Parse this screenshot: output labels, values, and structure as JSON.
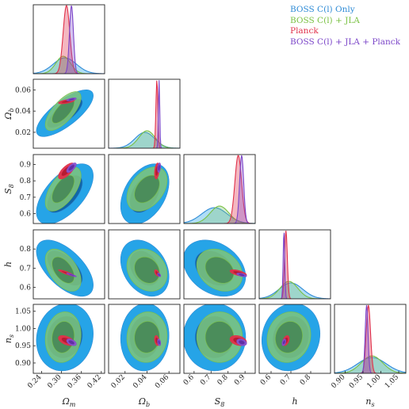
{
  "chart_data": {
    "type": "corner",
    "parameters": [
      {
        "label": "Ωm",
        "symbol": "Ω",
        "sub": "m",
        "range": [
          0.215,
          0.43
        ],
        "ticks": [
          0.24,
          0.3,
          0.36,
          0.42
        ],
        "tick_labels": [
          "0.24",
          "0.30",
          "0.36",
          "0.42"
        ]
      },
      {
        "label": "Ωb",
        "symbol": "Ω",
        "sub": "b",
        "range": [
          0.005,
          0.07
        ],
        "ticks": [
          0.02,
          0.04,
          0.06
        ],
        "tick_labels": [
          "0.02",
          "0.04",
          "0.06"
        ]
      },
      {
        "label": "S8",
        "symbol": "S",
        "sub": "8",
        "range": [
          0.54,
          0.96
        ],
        "ticks": [
          0.6,
          0.7,
          0.8,
          0.9
        ],
        "tick_labels": [
          "0.6",
          "0.7",
          "0.8",
          "0.9"
        ]
      },
      {
        "label": "h",
        "symbol": "h",
        "sub": "",
        "range": [
          0.54,
          0.9
        ],
        "ticks": [
          0.6,
          0.7,
          0.8
        ],
        "tick_labels": [
          "0.6",
          "0.7",
          "0.8"
        ]
      },
      {
        "label": "ns",
        "symbol": "n",
        "sub": "s",
        "range": [
          0.87,
          1.07
        ],
        "ticks": [
          0.9,
          0.95,
          1.0,
          1.05
        ],
        "tick_labels": [
          "0.90",
          "0.95",
          "1.00",
          "1.05"
        ]
      }
    ],
    "series": [
      {
        "name": "BOSS C(l) Only",
        "color": "#2e8bd6",
        "fill": "#1a9fe6",
        "inner": "#0f5fa0",
        "mean": [
          0.31,
          0.038,
          0.72,
          0.7,
          0.975
        ],
        "sigma": [
          0.035,
          0.009,
          0.075,
          0.06,
          0.04
        ],
        "corr": {
          "0-1": 0.75,
          "0-2": 0.6,
          "0-3": -0.6,
          "0-4": 0.1,
          "1-2": 0.4,
          "1-3": -0.3,
          "1-4": 0.05,
          "2-3": -0.3,
          "2-4": 0.0,
          "3-4": 0.1
        }
      },
      {
        "name": "BOSS C(l) + JLA",
        "color": "#7ac143",
        "fill": "#7fc57a",
        "inner": "#3c7a4c",
        "mean": [
          0.305,
          0.04,
          0.75,
          0.69,
          0.975
        ],
        "sigma": [
          0.022,
          0.0075,
          0.055,
          0.045,
          0.03
        ],
        "corr": {
          "0-1": 0.7,
          "0-2": 0.6,
          "0-3": -0.5,
          "0-4": 0.1,
          "1-2": 0.4,
          "1-3": -0.2,
          "1-4": 0.05,
          "2-3": -0.25,
          "2-4": 0.0,
          "3-4": 0.1
        }
      },
      {
        "name": "Planck",
        "color": "#e0304a",
        "fill": "#e0304a",
        "inner": "#b01830",
        "mean": [
          0.315,
          0.049,
          0.86,
          0.675,
          0.965
        ],
        "sigma": [
          0.01,
          0.0009,
          0.02,
          0.007,
          0.006
        ],
        "corr": {
          "0-1": 0.6,
          "0-2": 0.7,
          "0-3": -0.9,
          "0-4": -0.5,
          "1-2": 0.3,
          "1-3": -0.5,
          "1-4": -0.3,
          "2-3": -0.6,
          "2-4": -0.3,
          "3-4": 0.4
        }
      },
      {
        "name": "BOSS C(l) + JLA + Planck",
        "color": "#7b45c8",
        "fill": "#8a55d0",
        "inner": "#5b2aa0",
        "mean": [
          0.33,
          0.051,
          0.88,
          0.665,
          0.96
        ],
        "sigma": [
          0.006,
          0.0006,
          0.012,
          0.004,
          0.004
        ],
        "corr": {
          "0-1": 0.6,
          "0-2": 0.7,
          "0-3": -0.9,
          "0-4": -0.5,
          "1-2": 0.3,
          "1-3": -0.5,
          "1-4": -0.3,
          "2-3": -0.6,
          "2-4": -0.3,
          "3-4": 0.4
        }
      }
    ],
    "legend_position": "top-right",
    "grid": false
  }
}
